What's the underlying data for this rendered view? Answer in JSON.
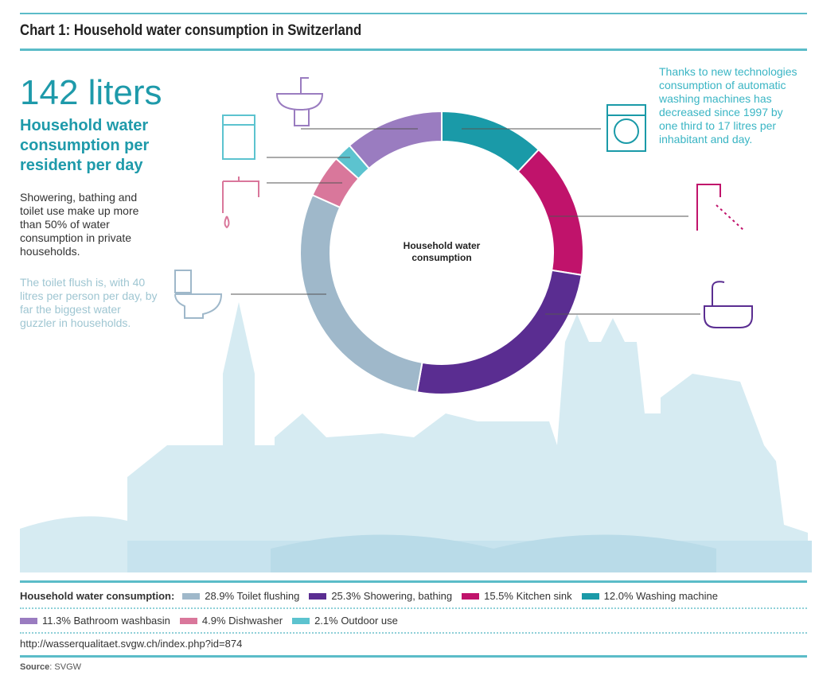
{
  "title": "Chart 1: Household water consumption in Switzerland",
  "headline": "142 liters",
  "subheadline": "Household water consumption per resident per day",
  "para1": "Showering, bathing and toilet use make up more than 50% of water consumption in private households.",
  "para2": "The toilet flush is, with 40 litres per person per day, by far the biggest water guzzler in households.",
  "note": "Thanks to new technologies consumption of automatic washing machines has decreased since 1997 by one third to 17 litres per inhabitant and day.",
  "url": "http://wasserqualitaet.svgw.ch/index.php?id=874",
  "source_label": "Source",
  "source_value": ": SVGW",
  "chart_data": {
    "type": "pie",
    "title": "Household water consumption",
    "center_label": "Household water consumption",
    "legend_title": "Household water consumption:",
    "start": "top, clockwise",
    "slices": [
      {
        "label": "Washing machine",
        "value": 12.0,
        "text": "12.0% Washing machine",
        "color": "#1a9aa8",
        "icon": "washing-machine-icon"
      },
      {
        "label": "Kitchen sink",
        "value": 15.5,
        "text": "15.5% Kitchen sink",
        "color": "#c0136b",
        "icon": "faucet-icon"
      },
      {
        "label": "Showering, bathing",
        "value": 25.3,
        "text": "25.3% Showering, bathing",
        "color": "#5a2d91",
        "icon": "bathtub-icon"
      },
      {
        "label": "Toilet flushing",
        "value": 28.9,
        "text": "28.9% Toilet flushing",
        "color": "#9fb8ca",
        "icon": "toilet-icon"
      },
      {
        "label": "Dishwasher",
        "value": 4.9,
        "text": "4.9% Dishwasher",
        "color": "#d9779b",
        "icon": "tap-icon"
      },
      {
        "label": "Outdoor use",
        "value": 2.1,
        "text": "2.1% Outdoor use",
        "color": "#5cc3cf",
        "icon": "dishwasher-icon"
      },
      {
        "label": "Bathroom washbasin",
        "value": 11.3,
        "text": "11.3% Bathroom washbasin",
        "color": "#9a7cc0",
        "icon": "washbasin-icon"
      }
    ],
    "legend_order": [
      3,
      2,
      1,
      0,
      6,
      4,
      5
    ]
  }
}
